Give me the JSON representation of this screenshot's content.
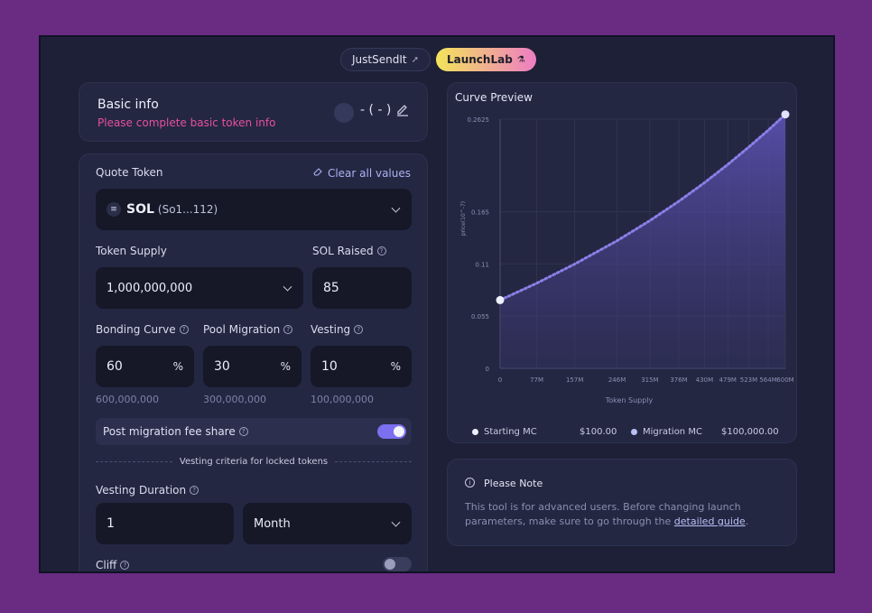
{
  "tabs": [
    {
      "label": "JustSendIt",
      "icon": "rocket-icon",
      "active": false
    },
    {
      "label": "LaunchLab",
      "icon": "flask-icon",
      "active": true
    }
  ],
  "basic_info": {
    "title": "Basic info",
    "warning": "Please complete basic token info",
    "symbol": "- ( - )"
  },
  "form": {
    "quote_token_label": "Quote Token",
    "clear_all_label": "Clear all values",
    "quote_token_value": "SOL",
    "quote_token_address": "(So1...112)",
    "token_supply_label": "Token Supply",
    "token_supply_value": "1,000,000,000",
    "sol_raised_label": "SOL Raised",
    "sol_raised_value": "85",
    "bonding_curve_label": "Bonding Curve",
    "bonding_curve_value": "60",
    "bonding_curve_amount": "600,000,000",
    "pool_migration_label": "Pool Migration",
    "pool_migration_value": "30",
    "pool_migration_amount": "300,000,000",
    "vesting_label": "Vesting",
    "vesting_value": "10",
    "vesting_amount": "100,000,000",
    "percent_sign": "%",
    "fee_share_label": "Post migration fee share",
    "fee_share_enabled": true,
    "vesting_criteria_label": "Vesting criteria for locked tokens",
    "vesting_duration_label": "Vesting Duration",
    "vesting_duration_value": "1",
    "vesting_duration_unit": "Month",
    "cliff_label": "Cliff",
    "cliff_enabled": false
  },
  "curve_preview": {
    "title": "Curve Preview",
    "starting_mc_label": "Starting MC",
    "starting_mc_value": "$100.00",
    "migration_mc_label": "Migration MC",
    "migration_mc_value": "$100,000.00"
  },
  "note": {
    "title": "Please Note",
    "body": "This tool is for advanced users. Before changing launch parameters, make sure to go through the",
    "link": "detailed guide",
    "end": "."
  },
  "colors": {
    "accent": "#7c6ff0",
    "warning": "#e64fa0",
    "background": "#1d2036",
    "outer": "#6a2b82"
  },
  "chart_data": {
    "type": "area",
    "xlabel": "Token Supply",
    "ylabel": "price(10^-7)",
    "x_tick_labels": [
      "0",
      "77M",
      "157M",
      "246M",
      "315M",
      "376M",
      "430M",
      "479M",
      "523M",
      "564M",
      "600M"
    ],
    "y_tick_labels": [
      "0",
      "0.055",
      "0.11",
      "0.165",
      "0.2625"
    ],
    "y_ticks": [
      0,
      0.055,
      0.11,
      0.165,
      0.2625
    ],
    "ylim": [
      0,
      0.2625
    ],
    "x": [
      0,
      77,
      157,
      246,
      315,
      376,
      430,
      479,
      523,
      564,
      600
    ],
    "y": [
      0.0719,
      0.0897,
      0.1099,
      0.1344,
      0.1556,
      0.176,
      0.1956,
      0.2148,
      0.2331,
      0.2509,
      0.2675
    ],
    "grid": true
  }
}
